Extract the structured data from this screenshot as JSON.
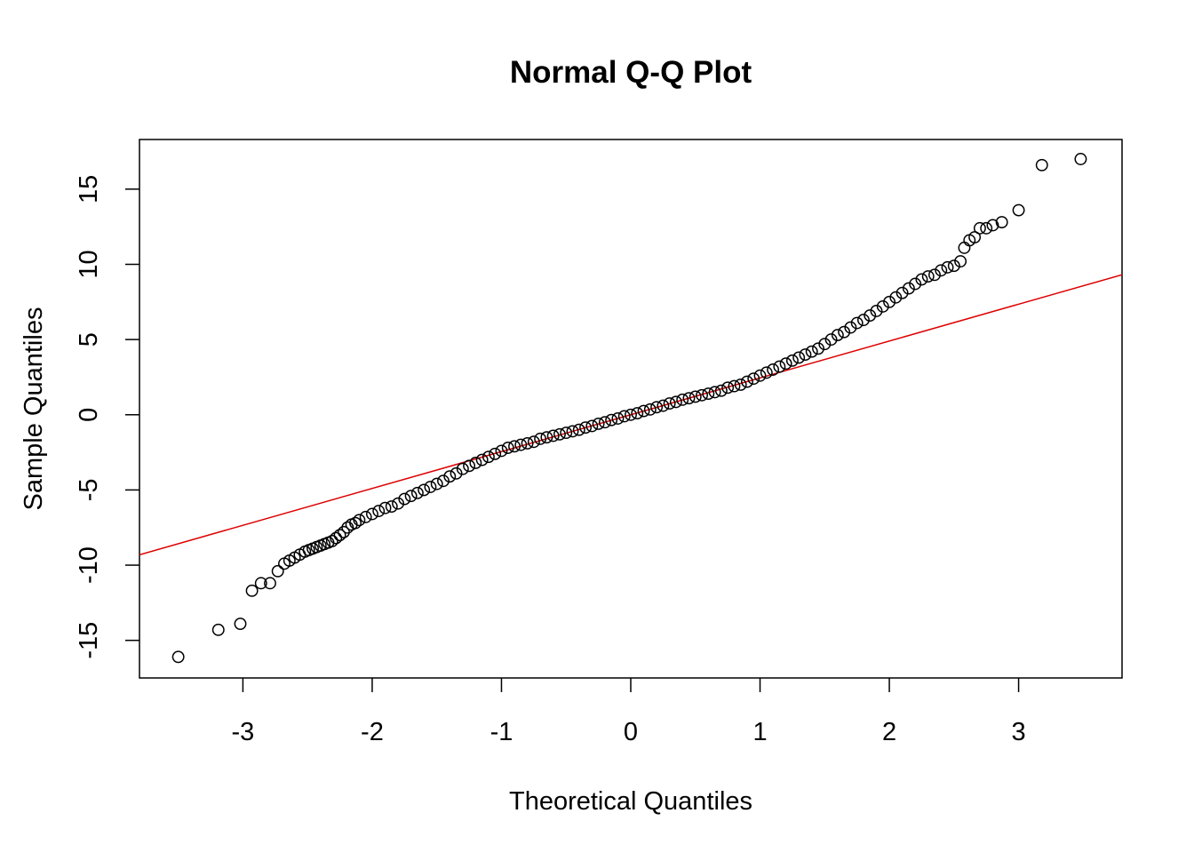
{
  "chart_data": {
    "type": "scatter",
    "title": "Normal Q-Q Plot",
    "xlabel": "Theoretical Quantiles",
    "ylabel": "Sample Quantiles",
    "xlim": [
      -3.8,
      3.8
    ],
    "ylim": [
      -17.5,
      18.3
    ],
    "x_ticks": [
      -3,
      -2,
      -1,
      0,
      1,
      2,
      3
    ],
    "y_ticks": [
      -15,
      -10,
      -5,
      0,
      5,
      10,
      15
    ],
    "grid": false,
    "legend": "none",
    "point_color": "#000000",
    "line_color": "#dd0000",
    "reference_line": {
      "intercept": 0.0,
      "slope": 2.45
    },
    "points": [
      [
        -3.5,
        -16.1
      ],
      [
        -3.19,
        -14.3
      ],
      [
        -3.02,
        -13.9
      ],
      [
        -2.93,
        -11.7
      ],
      [
        -2.86,
        -11.2
      ],
      [
        -2.79,
        -11.2
      ],
      [
        -2.73,
        -10.4
      ],
      [
        -2.68,
        -9.9
      ],
      [
        -2.64,
        -9.7
      ],
      [
        -2.6,
        -9.5
      ],
      [
        -2.56,
        -9.3
      ],
      [
        -2.52,
        -9.1
      ],
      [
        -2.49,
        -9.0
      ],
      [
        -2.46,
        -8.9
      ],
      [
        -2.43,
        -8.8
      ],
      [
        -2.4,
        -8.7
      ],
      [
        -2.37,
        -8.6
      ],
      [
        -2.34,
        -8.5
      ],
      [
        -2.31,
        -8.4
      ],
      [
        -2.28,
        -8.2
      ],
      [
        -2.25,
        -8.0
      ],
      [
        -2.22,
        -7.8
      ],
      [
        -2.19,
        -7.5
      ],
      [
        -2.16,
        -7.3
      ],
      [
        -2.13,
        -7.2
      ],
      [
        -2.1,
        -7.0
      ],
      [
        -2.05,
        -6.8
      ],
      [
        -2.0,
        -6.6
      ],
      [
        -1.95,
        -6.4
      ],
      [
        -1.9,
        -6.2
      ],
      [
        -1.85,
        -6.1
      ],
      [
        -1.8,
        -5.9
      ],
      [
        -1.75,
        -5.6
      ],
      [
        -1.7,
        -5.4
      ],
      [
        -1.65,
        -5.2
      ],
      [
        -1.6,
        -5.0
      ],
      [
        -1.55,
        -4.8
      ],
      [
        -1.5,
        -4.6
      ],
      [
        -1.45,
        -4.4
      ],
      [
        -1.4,
        -4.1
      ],
      [
        -1.35,
        -3.9
      ],
      [
        -1.3,
        -3.6
      ],
      [
        -1.25,
        -3.4
      ],
      [
        -1.2,
        -3.2
      ],
      [
        -1.15,
        -3.0
      ],
      [
        -1.1,
        -2.8
      ],
      [
        -1.05,
        -2.6
      ],
      [
        -1.0,
        -2.4
      ],
      [
        -0.95,
        -2.2
      ],
      [
        -0.9,
        -2.1
      ],
      [
        -0.85,
        -2.0
      ],
      [
        -0.8,
        -1.9
      ],
      [
        -0.75,
        -1.8
      ],
      [
        -0.7,
        -1.6
      ],
      [
        -0.65,
        -1.5
      ],
      [
        -0.6,
        -1.4
      ],
      [
        -0.55,
        -1.3
      ],
      [
        -0.5,
        -1.2
      ],
      [
        -0.45,
        -1.1
      ],
      [
        -0.4,
        -1.0
      ],
      [
        -0.35,
        -0.85
      ],
      [
        -0.3,
        -0.75
      ],
      [
        -0.25,
        -0.6
      ],
      [
        -0.2,
        -0.5
      ],
      [
        -0.15,
        -0.35
      ],
      [
        -0.1,
        -0.25
      ],
      [
        -0.05,
        -0.1
      ],
      [
        0.0,
        0.0
      ],
      [
        0.05,
        0.1
      ],
      [
        0.1,
        0.25
      ],
      [
        0.15,
        0.35
      ],
      [
        0.2,
        0.5
      ],
      [
        0.25,
        0.6
      ],
      [
        0.3,
        0.75
      ],
      [
        0.35,
        0.85
      ],
      [
        0.4,
        1.0
      ],
      [
        0.45,
        1.1
      ],
      [
        0.5,
        1.2
      ],
      [
        0.55,
        1.3
      ],
      [
        0.6,
        1.4
      ],
      [
        0.65,
        1.5
      ],
      [
        0.7,
        1.6
      ],
      [
        0.75,
        1.8
      ],
      [
        0.8,
        1.9
      ],
      [
        0.85,
        2.0
      ],
      [
        0.9,
        2.2
      ],
      [
        0.95,
        2.4
      ],
      [
        1.0,
        2.6
      ],
      [
        1.05,
        2.8
      ],
      [
        1.1,
        3.0
      ],
      [
        1.15,
        3.2
      ],
      [
        1.2,
        3.4
      ],
      [
        1.25,
        3.6
      ],
      [
        1.3,
        3.8
      ],
      [
        1.35,
        4.0
      ],
      [
        1.4,
        4.2
      ],
      [
        1.45,
        4.4
      ],
      [
        1.5,
        4.7
      ],
      [
        1.55,
        5.0
      ],
      [
        1.6,
        5.3
      ],
      [
        1.65,
        5.5
      ],
      [
        1.7,
        5.8
      ],
      [
        1.75,
        6.1
      ],
      [
        1.8,
        6.3
      ],
      [
        1.85,
        6.6
      ],
      [
        1.9,
        6.9
      ],
      [
        1.95,
        7.2
      ],
      [
        2.0,
        7.5
      ],
      [
        2.05,
        7.8
      ],
      [
        2.1,
        8.1
      ],
      [
        2.15,
        8.4
      ],
      [
        2.2,
        8.7
      ],
      [
        2.25,
        9.0
      ],
      [
        2.3,
        9.2
      ],
      [
        2.35,
        9.3
      ],
      [
        2.4,
        9.6
      ],
      [
        2.45,
        9.8
      ],
      [
        2.5,
        9.9
      ],
      [
        2.55,
        10.2
      ],
      [
        2.58,
        11.1
      ],
      [
        2.62,
        11.6
      ],
      [
        2.66,
        11.8
      ],
      [
        2.7,
        12.4
      ],
      [
        2.75,
        12.4
      ],
      [
        2.8,
        12.6
      ],
      [
        2.87,
        12.8
      ],
      [
        3.0,
        13.6
      ],
      [
        3.18,
        16.6
      ],
      [
        3.48,
        17.0
      ]
    ]
  }
}
